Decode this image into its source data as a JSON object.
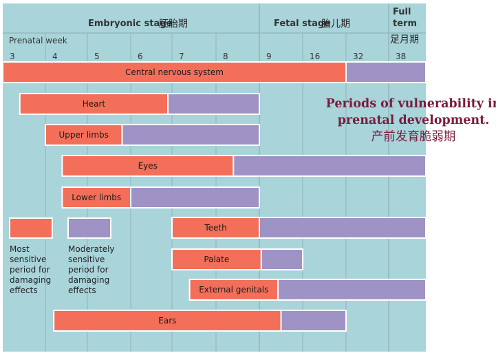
{
  "caption": {
    "line1": "Periods of vulnerability in",
    "line2": "prenatal development.",
    "line3": "产前发育脆弱期"
  },
  "colors": {
    "background": "#a9d4da",
    "most_sensitive": "#f36f5a",
    "moderately_sensitive": "#9f93c6",
    "grid": "#8fb3b9",
    "caption": "#7a1c3e"
  },
  "chart_data": {
    "type": "bar",
    "orientation": "horizontal-gantt",
    "x_axis_label": "Prenatal week",
    "stages": [
      {
        "name": "Embryonic stage",
        "name_cn": "胚胎期",
        "weeks": "3-8"
      },
      {
        "name": "Fetal stage",
        "name_cn": "胎儿期",
        "weeks": "9-32"
      },
      {
        "name": "Full term",
        "name_cn": "足月期",
        "weeks": "38"
      }
    ],
    "weeks": [
      "3",
      "4",
      "5",
      "6",
      "7",
      "8",
      "9",
      "16",
      "32",
      "38"
    ],
    "legend": [
      {
        "key": "most",
        "text": [
          "Most",
          "sensitive",
          "period for",
          "damaging",
          "effects"
        ]
      },
      {
        "key": "moderate",
        "text": [
          "Moderately",
          "sensitive",
          "period for",
          "damaging",
          "effects"
        ]
      }
    ],
    "series": [
      {
        "name": "Central nervous system",
        "most": [
          3,
          32
        ],
        "moderate": [
          32,
          38
        ]
      },
      {
        "name": "Heart",
        "most": [
          3.4,
          6.9
        ],
        "moderate": [
          6.9,
          9
        ]
      },
      {
        "name": "Upper limbs",
        "most": [
          4,
          5.8
        ],
        "moderate": [
          5.8,
          9
        ]
      },
      {
        "name": "Eyes",
        "most": [
          4.4,
          8.4
        ],
        "moderate": [
          8.4,
          38
        ]
      },
      {
        "name": "Lower limbs",
        "most": [
          4.4,
          6
        ],
        "moderate": [
          6,
          9
        ]
      },
      {
        "name": "Teeth",
        "most": [
          7,
          9
        ],
        "moderate": [
          9,
          38
        ]
      },
      {
        "name": "Palate",
        "most": [
          7,
          9.3
        ],
        "moderate": [
          9.3,
          16
        ]
      },
      {
        "name": "External genitals",
        "most": [
          7.4,
          12
        ],
        "moderate": [
          12,
          38
        ]
      },
      {
        "name": "Ears",
        "most": [
          4.2,
          12.5
        ],
        "moderate": [
          12.5,
          32
        ]
      }
    ]
  }
}
